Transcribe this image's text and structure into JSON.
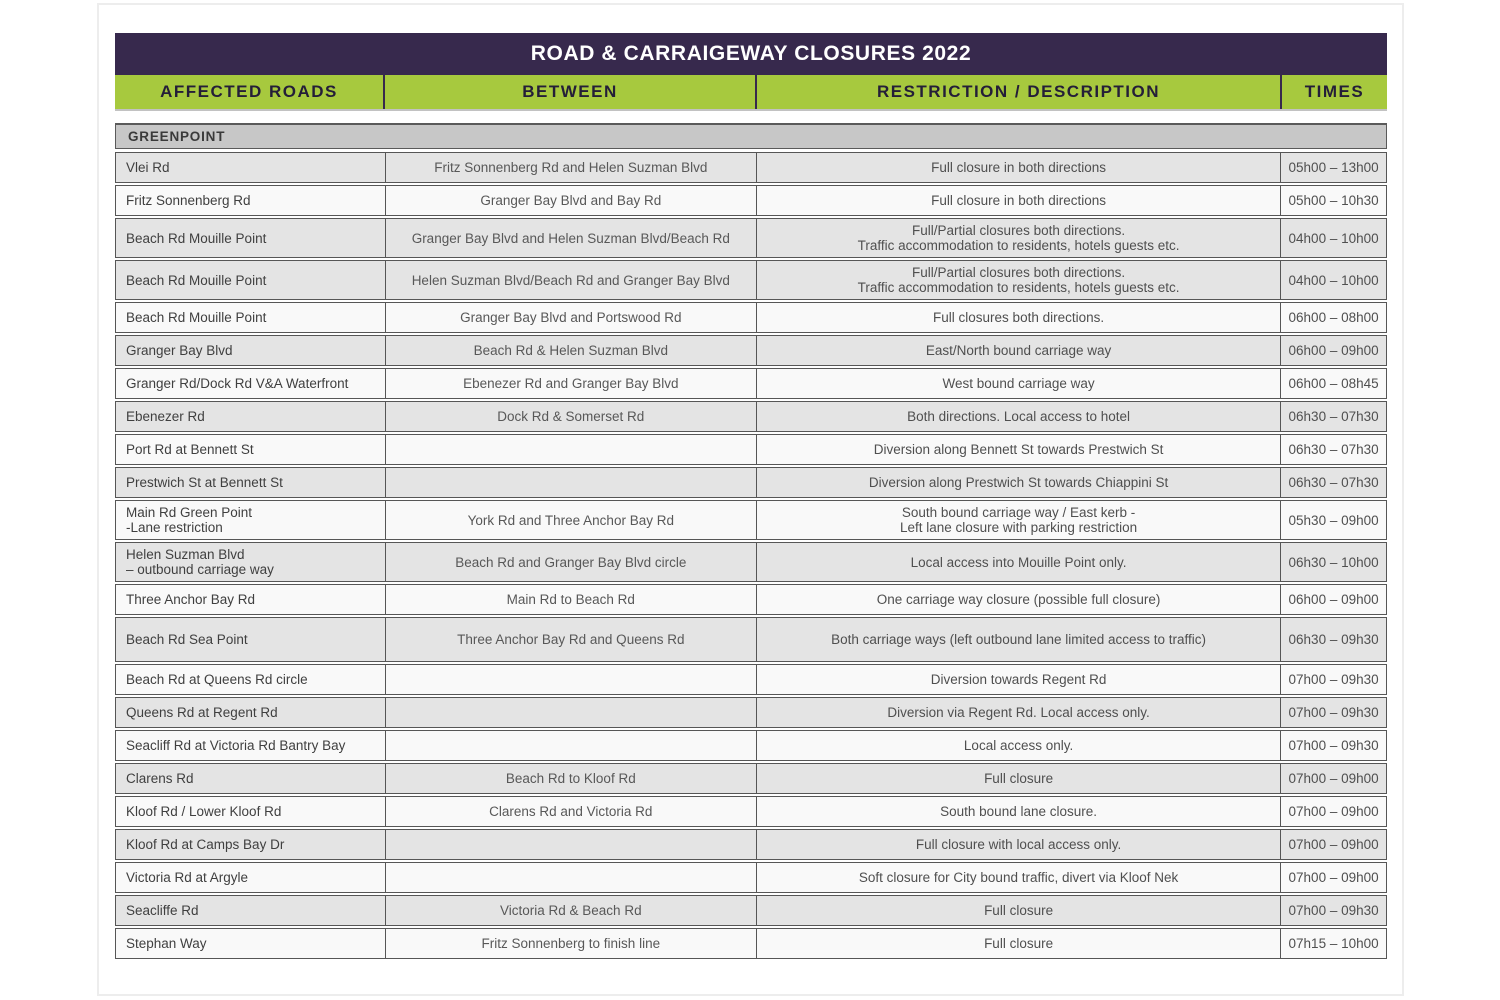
{
  "title": "ROAD & CARRAIGEWAY CLOSURES 2022",
  "columns": [
    "AFFECTED ROADS",
    "BETWEEN",
    "RESTRICTION / DESCRIPTION",
    "TIMES"
  ],
  "section": "GREENPOINT",
  "colors": {
    "header_bg": "#37294d",
    "header_text": "#ffffff",
    "accent_green": "#a7c93e",
    "column_header_text": "#241e38",
    "section_bg": "#c7c7c7",
    "row_gray": "#e4e4e4",
    "row_white": "#f9f9f9",
    "border": "#565656",
    "body_text": "#4f4f4f"
  },
  "rows": [
    {
      "road": "Vlei Rd",
      "between": "Fritz Sonnenberg Rd and Helen Suzman Blvd",
      "restriction": "Full closure in both directions",
      "times": "05h00 – 13h00",
      "shade": "gray"
    },
    {
      "road": "Fritz Sonnenberg Rd",
      "between": "Granger Bay Blvd and Bay Rd",
      "restriction": "Full closure in both directions",
      "times": "05h00 – 10h30",
      "shade": "white"
    },
    {
      "road": "Beach Rd Mouille Point",
      "between": "Granger Bay Blvd and Helen Suzman Blvd/Beach Rd",
      "restriction": "Full/Partial closures both directions.\nTraffic accommodation to residents, hotels guests etc.",
      "times": "04h00 – 10h00",
      "shade": "gray"
    },
    {
      "road": "Beach Rd Mouille Point",
      "between": "Helen Suzman Blvd/Beach Rd and Granger Bay Blvd",
      "restriction": "Full/Partial closures both directions.\nTraffic accommodation to residents, hotels guests etc.",
      "times": "04h00 – 10h00",
      "shade": "gray"
    },
    {
      "road": "Beach Rd Mouille Point",
      "between": "Granger Bay Blvd and Portswood Rd",
      "restriction": "Full closures both directions.",
      "times": "06h00 – 08h00",
      "shade": "white"
    },
    {
      "road": "Granger Bay Blvd",
      "between": "Beach Rd & Helen Suzman Blvd",
      "restriction": "East/North bound carriage way",
      "times": "06h00 – 09h00",
      "shade": "gray"
    },
    {
      "road": "Granger Rd/Dock Rd V&A Waterfront",
      "between": "Ebenezer Rd and Granger Bay Blvd",
      "restriction": "West bound carriage way",
      "times": "06h00 – 08h45",
      "shade": "white"
    },
    {
      "road": "Ebenezer Rd",
      "between": "Dock Rd & Somerset Rd",
      "restriction": "Both directions. Local access to hotel",
      "times": "06h30 – 07h30",
      "shade": "gray"
    },
    {
      "road": "Port Rd at Bennett St",
      "between": "",
      "restriction": "Diversion along Bennett St towards Prestwich St",
      "times": "06h30 – 07h30",
      "shade": "white"
    },
    {
      "road": "Prestwich St at Bennett St",
      "between": "",
      "restriction": "Diversion along Prestwich St towards Chiappini St",
      "times": "06h30 – 07h30",
      "shade": "gray"
    },
    {
      "road": "Main Rd Green Point\n-Lane restriction",
      "between": "York Rd and Three Anchor Bay Rd",
      "restriction": "South bound carriage way / East kerb -\nLeft lane closure with parking restriction",
      "times": "05h30 – 09h00",
      "shade": "white"
    },
    {
      "road": "Helen Suzman Blvd\n– outbound carriage way",
      "between": "Beach Rd and Granger Bay Blvd circle",
      "restriction": "Local access into Mouille Point only.",
      "times": "06h30 – 10h00",
      "shade": "gray"
    },
    {
      "road": "Three Anchor Bay Rd",
      "between": "Main Rd to Beach Rd",
      "restriction": "One carriage way closure (possible full closure)",
      "times": "06h00 – 09h00",
      "shade": "white"
    },
    {
      "road": "Beach Rd Sea Point",
      "between": "Three Anchor Bay Rd and Queens Rd",
      "restriction": "Both carriage ways (left outbound lane limited access to traffic)",
      "times": "06h30 – 09h30",
      "shade": "gray"
    },
    {
      "road": "Beach Rd at Queens Rd circle",
      "between": "",
      "restriction": "Diversion towards Regent Rd",
      "times": "07h00 – 09h30",
      "shade": "white"
    },
    {
      "road": "Queens Rd at Regent Rd",
      "between": "",
      "restriction": "Diversion via Regent Rd. Local access only.",
      "times": "07h00 – 09h30",
      "shade": "gray"
    },
    {
      "road": "Seacliff Rd at Victoria Rd Bantry Bay",
      "between": "",
      "restriction": "Local access only.",
      "times": "07h00 – 09h30",
      "shade": "white"
    },
    {
      "road": "Clarens Rd",
      "between": "Beach Rd to Kloof Rd",
      "restriction": "Full closure",
      "times": "07h00 – 09h00",
      "shade": "gray"
    },
    {
      "road": "Kloof Rd / Lower Kloof Rd",
      "between": "Clarens Rd and Victoria Rd",
      "restriction": "South bound lane closure.",
      "times": "07h00 – 09h00",
      "shade": "white"
    },
    {
      "road": "Kloof Rd at Camps Bay Dr",
      "between": "",
      "restriction": "Full closure with local access only.",
      "times": "07h00 – 09h00",
      "shade": "gray"
    },
    {
      "road": "Victoria Rd at Argyle",
      "between": "",
      "restriction": "Soft closure for City bound traffic, divert via Kloof Nek",
      "times": "07h00 – 09h00",
      "shade": "white"
    },
    {
      "road": "Seacliffe Rd",
      "between": "Victoria Rd & Beach Rd",
      "restriction": "Full closure",
      "times": "07h00 – 09h30",
      "shade": "gray"
    },
    {
      "road": "Stephan Way",
      "between": "Fritz Sonnenberg to finish line",
      "restriction": "Full closure",
      "times": "07h15 – 10h00",
      "shade": "white"
    }
  ]
}
